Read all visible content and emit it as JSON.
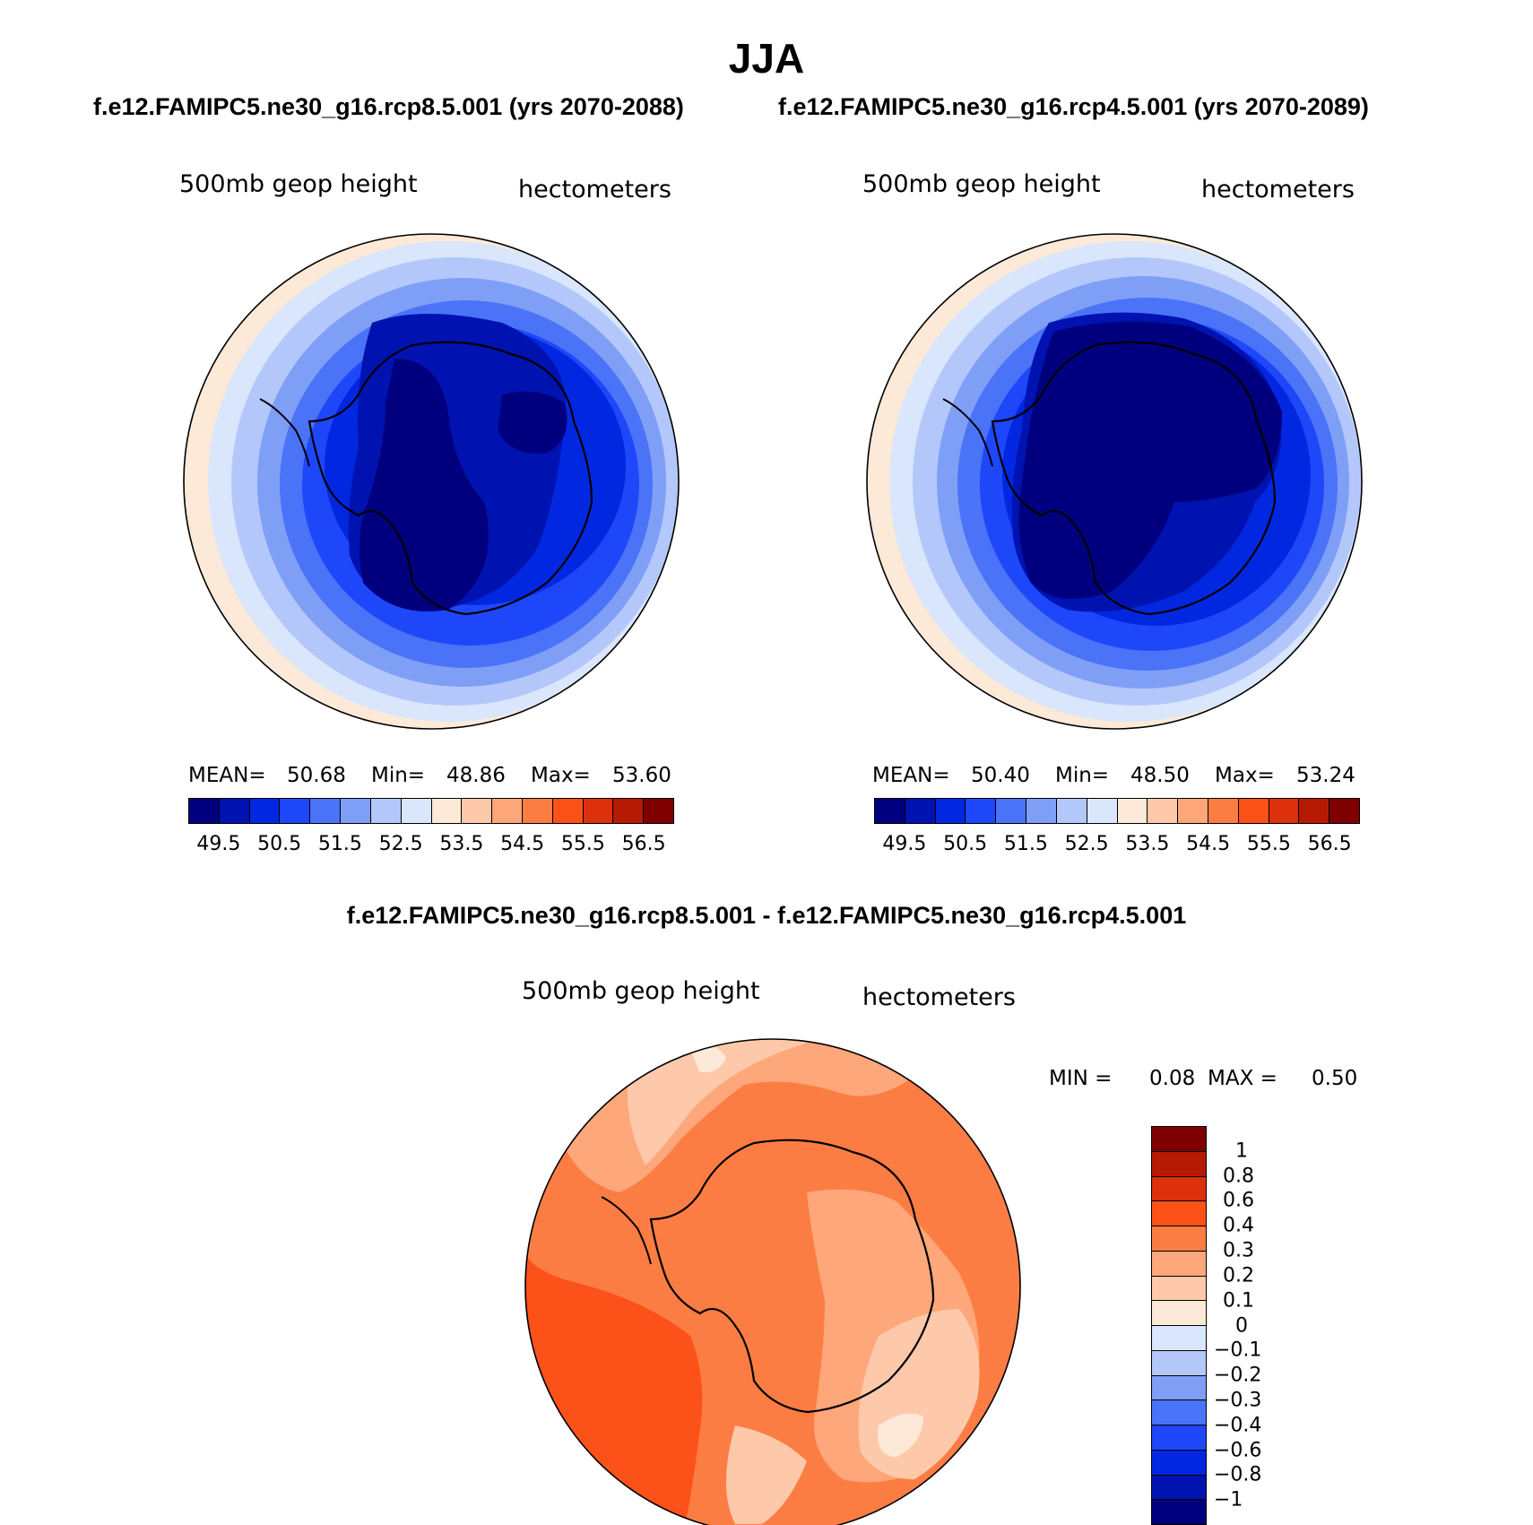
{
  "title": "JJA",
  "panels": [
    {
      "id": "left",
      "case_title": "f.e12.FAMIPC5.ne30_g16.rcp8.5.001 (yrs 2070-2088)",
      "variable": "500mb geop height",
      "units": "hectometers",
      "stats": {
        "mean_label": "MEAN=",
        "mean": "50.68",
        "min_label": "Min=",
        "min": "48.86",
        "max_label": "Max=",
        "max": "53.60"
      }
    },
    {
      "id": "right",
      "case_title": "f.e12.FAMIPC5.ne30_g16.rcp4.5.001 (yrs 2070-2089)",
      "variable": "500mb geop height",
      "units": "hectometers",
      "stats": {
        "mean_label": "MEAN=",
        "mean": "50.40",
        "min_label": "Min=",
        "min": "48.50",
        "max_label": "Max=",
        "max": "53.24"
      }
    }
  ],
  "diff_panel": {
    "title": "f.e12.FAMIPC5.ne30_g16.rcp8.5.001 - f.e12.FAMIPC5.ne30_g16.rcp4.5.001",
    "variable": "500mb geop height",
    "units": "hectometers",
    "min_label": "MIN =",
    "min": "0.08",
    "max_label": "MAX =",
    "max": "0.50"
  },
  "colorbar_abs": {
    "colors": [
      "#00007f",
      "#0013b0",
      "#0128e0",
      "#1f47fa",
      "#4a73f8",
      "#7f9ff7",
      "#b3c7fb",
      "#d9e6fb",
      "#fde9d7",
      "#fdc9aa",
      "#fda77a",
      "#fc7d44",
      "#fc5119",
      "#dd300c",
      "#b61a03",
      "#7f0000"
    ],
    "tick_labels": [
      "49.5",
      "50.5",
      "51.5",
      "52.5",
      "53.5",
      "54.5",
      "55.5",
      "56.5"
    ]
  },
  "colorbar_diff": {
    "colors_top_to_bottom": [
      "#7f0000",
      "#b61a03",
      "#dd300c",
      "#fc5119",
      "#fc7d44",
      "#fda77a",
      "#fdc9aa",
      "#fde9d7",
      "#d9e6fb",
      "#b3c7fb",
      "#7f9ff7",
      "#4a73f8",
      "#1f47fa",
      "#0128e0",
      "#0013b0",
      "#00007f"
    ],
    "tick_labels_top_to_bottom": [
      "1",
      "0.8",
      "0.6",
      "0.4",
      "0.3",
      "0.2",
      "0.1",
      "0",
      "−0.1",
      "−0.2",
      "−0.3",
      "−0.4",
      "−0.6",
      "−0.8",
      "−1"
    ]
  }
}
